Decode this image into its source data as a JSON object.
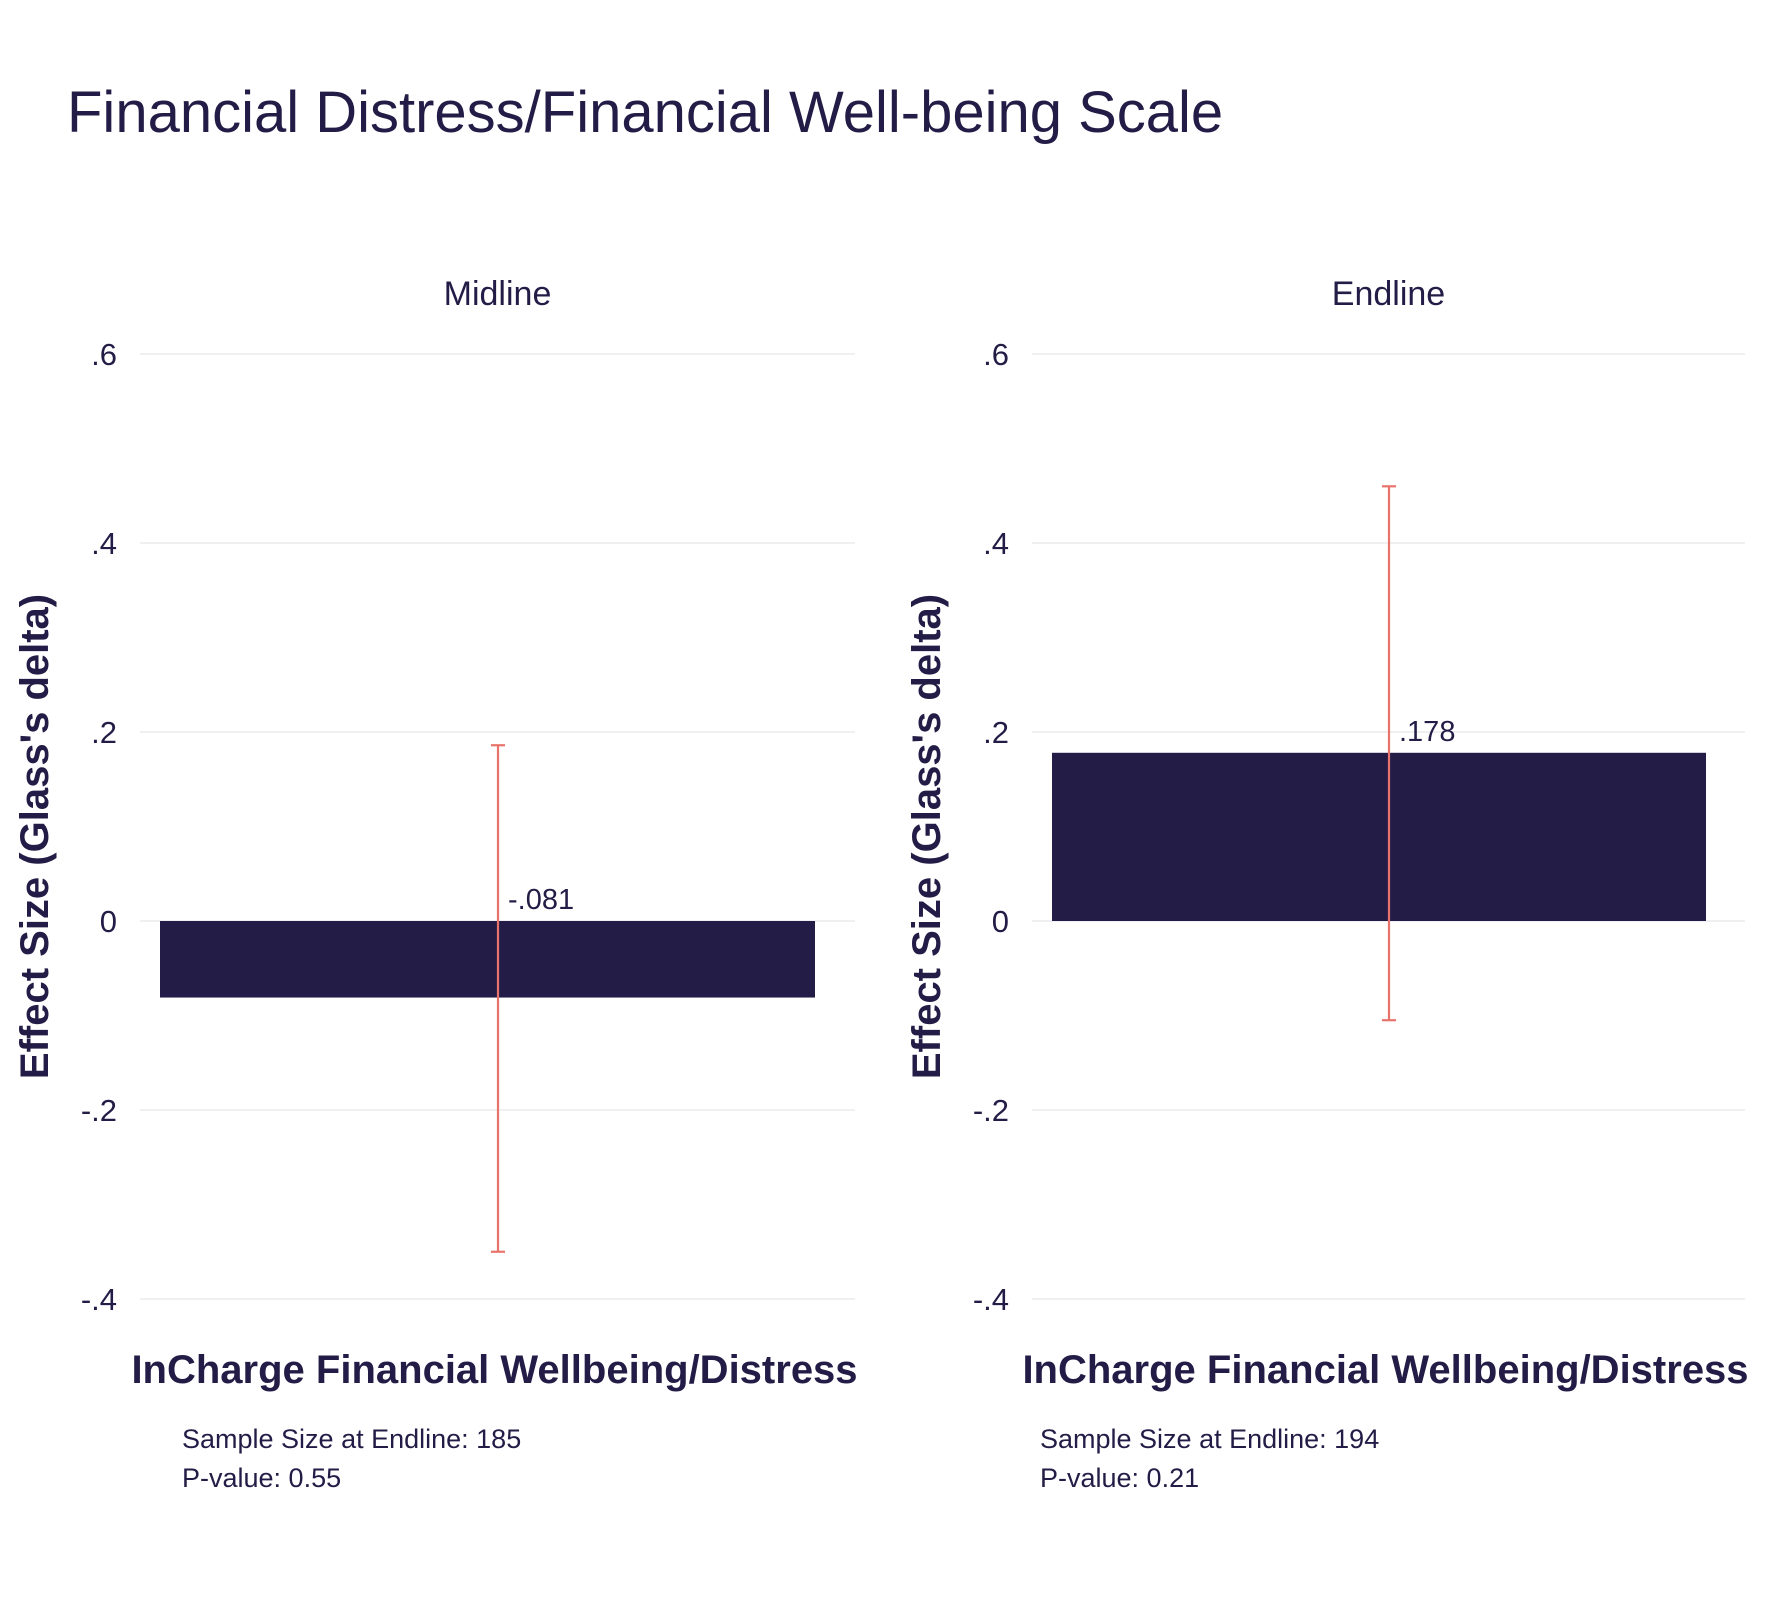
{
  "title": "Financial Distress/Financial Well-being Scale",
  "colors": {
    "bar": "#231c46",
    "error_bar": "#e8736b",
    "grid": "#e6e6ea",
    "text": "#231c46"
  },
  "chart_data": [
    {
      "type": "bar",
      "panel_title": "Midline",
      "categories": [
        "InCharge Financial Wellbeing/Distress"
      ],
      "values": [
        -0.081
      ],
      "value_labels": [
        "-.081"
      ],
      "ci_low": [
        -0.35
      ],
      "ci_high": [
        0.186
      ],
      "ylabel": "Effect Size (Glass's delta)",
      "xlabel": "InCharge Financial Wellbeing/Distress",
      "ylim": [
        -0.4,
        0.6
      ],
      "yticks": [
        -0.4,
        -0.2,
        0,
        0.2,
        0.4,
        0.6
      ],
      "ytick_labels": [
        "-.4",
        "-.2",
        "0",
        ".2",
        ".4",
        ".6"
      ],
      "grid": true,
      "notes": {
        "sample_size": "Sample Size at Endline: 185",
        "p_value": "P-value: 0.55"
      }
    },
    {
      "type": "bar",
      "panel_title": "Endline",
      "categories": [
        "InCharge Financial Wellbeing/Distress"
      ],
      "values": [
        0.178
      ],
      "value_labels": [
        ".178"
      ],
      "ci_low": [
        -0.105
      ],
      "ci_high": [
        0.46
      ],
      "ylabel": "Effect Size (Glass's delta)",
      "xlabel": "InCharge Financial Wellbeing/Distress",
      "ylim": [
        -0.4,
        0.6
      ],
      "yticks": [
        -0.4,
        -0.2,
        0,
        0.2,
        0.4,
        0.6
      ],
      "ytick_labels": [
        "-.4",
        "-.2",
        "0",
        ".2",
        ".4",
        ".6"
      ],
      "grid": true,
      "notes": {
        "sample_size": "Sample Size at Endline: 194",
        "p_value": "P-value: 0.21"
      }
    }
  ]
}
